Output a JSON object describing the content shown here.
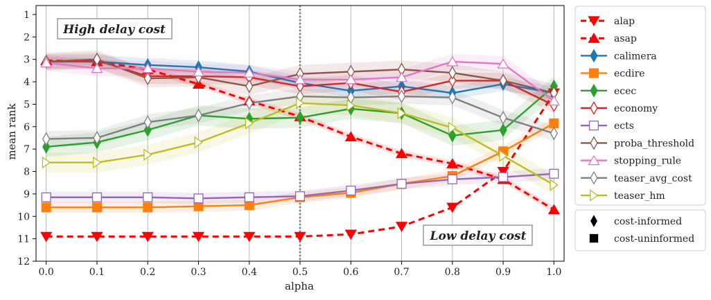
{
  "chart_data": {
    "type": "line",
    "title": "",
    "xlabel": "alpha",
    "ylabel": "mean rank",
    "x": [
      0.0,
      0.1,
      0.2,
      0.3,
      0.4,
      0.5,
      0.6,
      0.7,
      0.8,
      0.9,
      1.0
    ],
    "x_ticks": [
      "0.0",
      "0.1",
      "0.2",
      "0.3",
      "0.4",
      "0.5",
      "0.6",
      "0.7",
      "0.8",
      "0.9",
      "1.0"
    ],
    "y_ticks": [
      "1",
      "2",
      "3",
      "4",
      "5",
      "6",
      "7",
      "8",
      "9",
      "10",
      "11",
      "12"
    ],
    "xlim": [
      -0.02,
      1.02
    ],
    "ylim": [
      12,
      0.6
    ],
    "y_inverted": true,
    "grid": "vertical",
    "reference_line_x": 0.5,
    "annotations": {
      "top_left": "High delay cost",
      "bottom_right": "Low delay cost"
    },
    "legend_position": "right",
    "marker_legend": [
      {
        "marker": "diamond",
        "label": "cost-informed"
      },
      {
        "marker": "square",
        "label": "cost-uninformed"
      }
    ],
    "series": [
      {
        "name": "alap",
        "color": "#ff0000",
        "marker": "triangle-down",
        "dashed": true,
        "filled": true,
        "band": 0.0,
        "values": [
          10.9,
          10.9,
          10.9,
          10.9,
          10.9,
          10.9,
          10.8,
          10.45,
          9.6,
          8.0,
          4.5
        ]
      },
      {
        "name": "asap",
        "color": "#ff0000",
        "marker": "triangle-up",
        "dashed": true,
        "filled": true,
        "band": 0.15,
        "values": [
          3.05,
          3.1,
          3.45,
          4.1,
          4.85,
          5.55,
          6.45,
          7.2,
          7.65,
          8.35,
          9.7
        ]
      },
      {
        "name": "calimera",
        "color": "#1f77b4",
        "marker": "diamond",
        "dashed": false,
        "filled": true,
        "band": 0.3,
        "values": [
          3.1,
          3.1,
          3.25,
          3.35,
          3.55,
          4.05,
          4.4,
          4.2,
          4.5,
          4.1,
          4.5
        ]
      },
      {
        "name": "ecdire",
        "color": "#ff7f0e",
        "marker": "square",
        "dashed": false,
        "filled": true,
        "band": 0.25,
        "values": [
          9.6,
          9.6,
          9.6,
          9.55,
          9.5,
          9.15,
          8.95,
          8.55,
          8.2,
          7.1,
          5.85
        ]
      },
      {
        "name": "ecec",
        "color": "#2ca02c",
        "marker": "diamond",
        "dashed": false,
        "filled": true,
        "band": 0.45,
        "values": [
          6.9,
          6.7,
          6.15,
          5.5,
          5.65,
          5.6,
          5.2,
          5.4,
          6.4,
          6.15,
          4.2
        ]
      },
      {
        "name": "economy",
        "color": "#d62728",
        "marker": "diamond",
        "dashed": false,
        "filled": false,
        "band": 0.35,
        "values": [
          3.1,
          3.05,
          3.75,
          3.75,
          3.8,
          4.2,
          4.05,
          4.45,
          3.95,
          3.95,
          5.05
        ]
      },
      {
        "name": "ects",
        "color": "#9467bd",
        "marker": "square",
        "dashed": false,
        "filled": false,
        "band": 0.25,
        "values": [
          9.15,
          9.15,
          9.15,
          9.2,
          9.15,
          9.1,
          8.85,
          8.55,
          8.35,
          8.25,
          8.1
        ]
      },
      {
        "name": "proba_threshold",
        "color": "#8c564b",
        "marker": "diamond",
        "dashed": false,
        "filled": false,
        "band": 0.4,
        "values": [
          3.1,
          3.0,
          3.85,
          3.8,
          4.2,
          3.65,
          3.55,
          3.45,
          3.6,
          3.95,
          4.5
        ]
      },
      {
        "name": "stopping_rule",
        "color": "#e377c2",
        "marker": "triangle-up",
        "dashed": false,
        "filled": false,
        "band": 0.35,
        "values": [
          3.15,
          3.4,
          3.4,
          3.55,
          3.6,
          3.9,
          3.9,
          3.8,
          3.1,
          3.2,
          4.85
        ]
      },
      {
        "name": "teaser_avg_cost",
        "color": "#7f7f7f",
        "marker": "diamond",
        "dashed": false,
        "filled": false,
        "band": 0.35,
        "values": [
          6.55,
          6.5,
          5.8,
          5.5,
          4.95,
          4.65,
          4.7,
          4.65,
          4.7,
          5.6,
          6.3
        ]
      },
      {
        "name": "teaser_hm",
        "color": "#bcbd22",
        "marker": "diamond-right",
        "dashed": false,
        "filled": false,
        "band": 0.45,
        "values": [
          7.6,
          7.6,
          7.25,
          6.7,
          5.85,
          4.95,
          5.05,
          5.4,
          6.05,
          7.3,
          8.6
        ]
      }
    ]
  }
}
